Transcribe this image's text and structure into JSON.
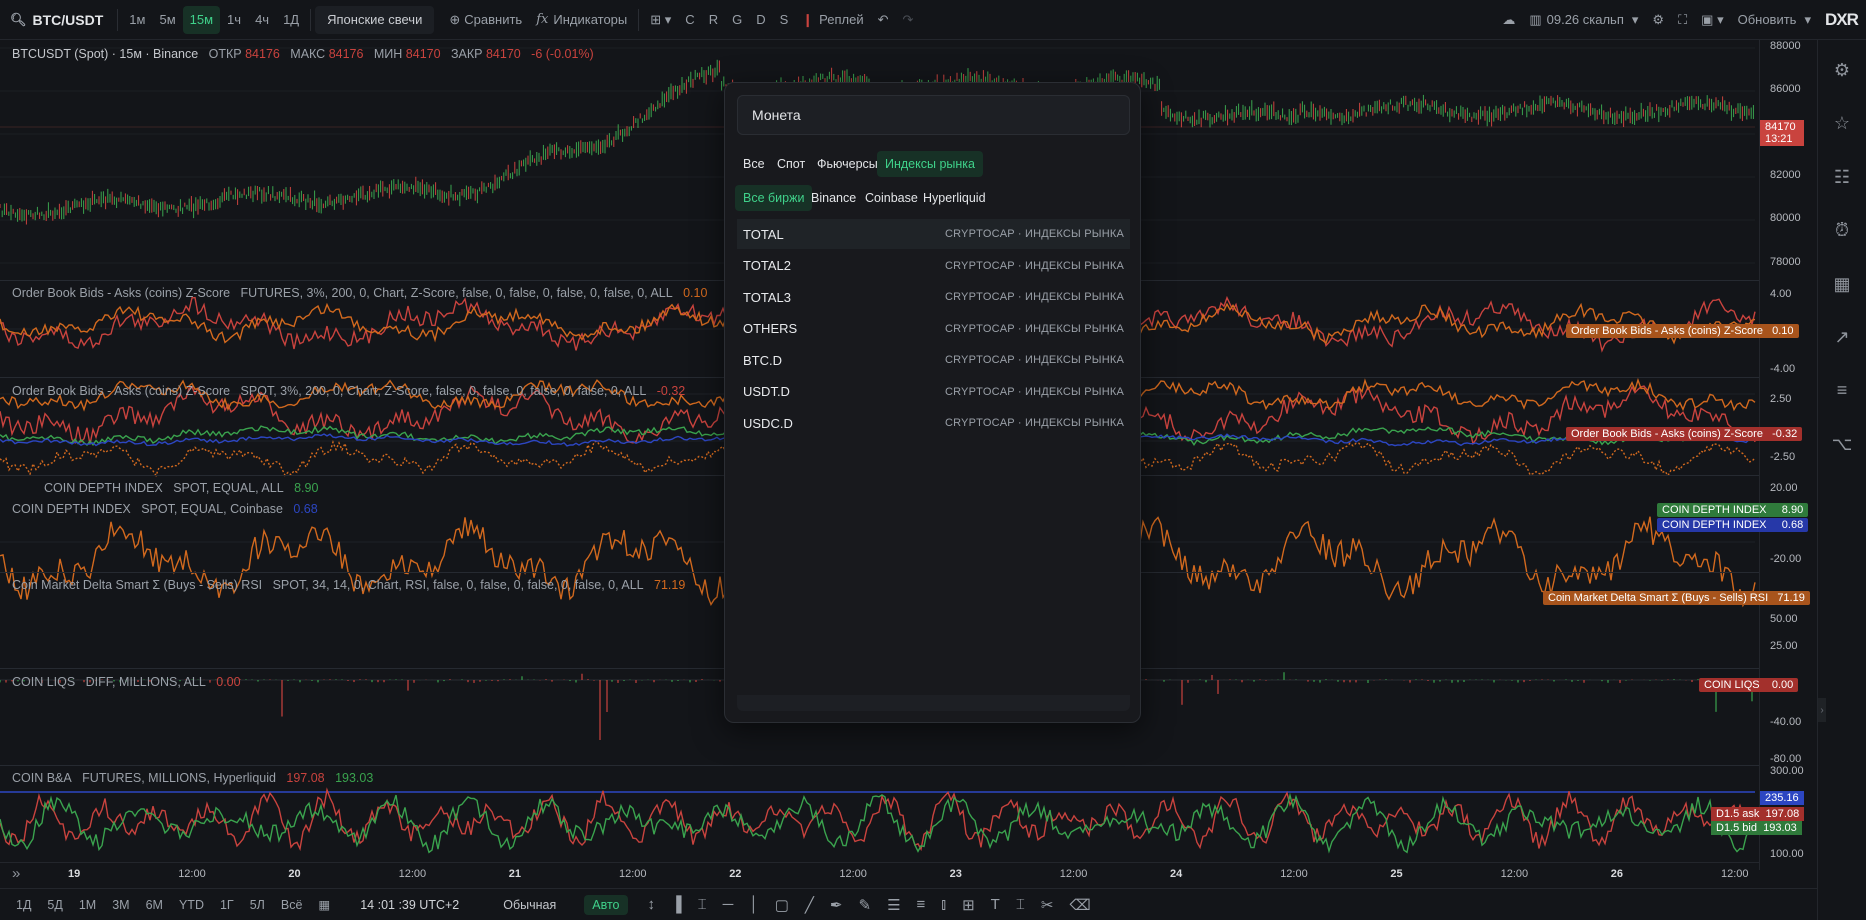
{
  "toolbar": {
    "symbol": "BTC/USDT",
    "intervals": [
      "1м",
      "5м",
      "15м",
      "1ч",
      "4ч",
      "1Д"
    ],
    "active_interval": "15м",
    "chart_type": "Японские свечи",
    "compare": "Сравнить",
    "indicators": "Индикаторы",
    "letters": [
      "C",
      "R",
      "G",
      "D",
      "S"
    ],
    "replay": "Реплей",
    "layout_name": "09.26 скальп",
    "update": "Обновить",
    "logo": "DXR"
  },
  "main_legend": {
    "title": "BTCUSDT (Spot) · 15м · Binance",
    "open_label": "ОТКР",
    "open": "84176",
    "high_label": "МАКС",
    "high": "84176",
    "low_label": "МИН",
    "low": "84170",
    "close_label": "ЗАКР",
    "close": "84170",
    "change": "-6 (-0.01%)"
  },
  "price_axis": {
    "main": [
      "88000",
      "86000",
      "84000",
      "82000",
      "80000",
      "78000"
    ],
    "pane1": [
      "4.00",
      "-4.00"
    ],
    "pane2": [
      "2.50",
      "-2.50"
    ],
    "pane3": [
      "20.00",
      "-20.00"
    ],
    "pane4": [
      "50.00",
      "25.00"
    ],
    "pane5": [
      "-40.00",
      "-80.00"
    ],
    "pane6": [
      "300.00",
      "100.00"
    ],
    "last_price": "84170",
    "countdown": "13:21"
  },
  "indicators": [
    {
      "name": "Order Book Bids - Asks (coins) Z-Score",
      "params": "FUTURES, 3%, 200, 0, Chart, Z-Score, false, 0, false, 0, false, 0, false, 0, ALL",
      "value": "0.10",
      "tag": "Order Book Bids - Asks (coins) Z-Score",
      "tag_value": "0.10"
    },
    {
      "name": "Order Book Bids - Asks (coins) Z-Score",
      "params": "SPOT, 3%, 200, 0, Chart, Z-Score, false, 0, false, 0, false, 0, false, 0, ALL",
      "value": "-0.32",
      "tag": "Order Book Bids - Asks (coins) Z-Score",
      "tag_value": "-0.32"
    },
    {
      "name": "COIN DEPTH INDEX",
      "params": "SPOT, EQUAL, ALL",
      "value": "8.90",
      "tag": "COIN DEPTH INDEX",
      "tag_value": "8.90"
    },
    {
      "name": "COIN DEPTH INDEX",
      "params": "SPOT, EQUAL, Coinbase",
      "value": "0.68",
      "tag": "COIN DEPTH INDEX",
      "tag_value": "0.68"
    },
    {
      "name": "Coin Market Delta Smart Σ (Buys - Sells) RSI",
      "params": "SPOT, 34, 14, 0, Chart, RSI, false, 0, false, 0, false, 0, false, 0, ALL",
      "value": "71.19",
      "tag": "Coin Market Delta Smart Σ (Buys - Sells) RSI",
      "tag_value": "71.19"
    },
    {
      "name": "COIN LIQS",
      "params": "DIFF, MILLIONS, ALL",
      "value": "0.00",
      "tag": "COIN LIQS",
      "tag_value": "0.00"
    },
    {
      "name": "COIN B&A",
      "params": "FUTURES, MILLIONS, Hyperliquid",
      "value_ask": "197.08",
      "value_bid": "193.03",
      "tag_top": "235.16",
      "tag_ask": "D1.5 ask",
      "tag_ask_value": "197.08",
      "tag_bid": "D1.5 bid",
      "tag_bid_value": "193.03"
    }
  ],
  "time_axis": [
    {
      "label": "19",
      "bold": true
    },
    {
      "label": "12:00"
    },
    {
      "label": "20",
      "bold": true
    },
    {
      "label": "12:00"
    },
    {
      "label": "21",
      "bold": true
    },
    {
      "label": "12:00"
    },
    {
      "label": "22",
      "bold": true
    },
    {
      "label": "12:00"
    },
    {
      "label": "23",
      "bold": true
    },
    {
      "label": "12:00"
    },
    {
      "label": "24",
      "bold": true
    },
    {
      "label": "12:00"
    },
    {
      "label": "25",
      "bold": true
    },
    {
      "label": "12:00"
    },
    {
      "label": "26",
      "bold": true
    },
    {
      "label": "12:00"
    }
  ],
  "bottom_bar": {
    "ranges": [
      "1Д",
      "5Д",
      "1М",
      "3М",
      "6М",
      "YTD",
      "1Г",
      "5Л",
      "Всё"
    ],
    "clock": "14 :01 :39 UTC+2",
    "mode": "Обычная",
    "auto": "Авто"
  },
  "modal": {
    "search_placeholder": "Монета",
    "tabs": [
      "Все",
      "Спот",
      "Фьючерсы",
      "Индексы рынка"
    ],
    "active_tab": "Индексы рынка",
    "exchanges": [
      "Все биржи",
      "Binance",
      "Coinbase",
      "Hyperliquid"
    ],
    "active_exchange": "Все биржи",
    "rows": [
      {
        "symbol": "TOTAL",
        "source": "CRYPTOCAP · ИНДЕКСЫ РЫНКА"
      },
      {
        "symbol": "TOTAL2",
        "source": "CRYPTOCAP · ИНДЕКСЫ РЫНКА"
      },
      {
        "symbol": "TOTAL3",
        "source": "CRYPTOCAP · ИНДЕКСЫ РЫНКА"
      },
      {
        "symbol": "OTHERS",
        "source": "CRYPTOCAP · ИНДЕКСЫ РЫНКА"
      },
      {
        "symbol": "BTC.D",
        "source": "CRYPTOCAP · ИНДЕКСЫ РЫНКА"
      },
      {
        "symbol": "USDT.D",
        "source": "CRYPTOCAP · ИНДЕКСЫ РЫНКА"
      },
      {
        "symbol": "USDC.D",
        "source": "CRYPTOCAP · ИНДЕКСЫ РЫНКА"
      }
    ]
  },
  "colors": {
    "bg": "#131519",
    "accent_green": "#3fd18a",
    "red": "#c9433e",
    "orange": "#d2691e",
    "green_line": "#3aa34e",
    "blue": "#2c46c2"
  }
}
